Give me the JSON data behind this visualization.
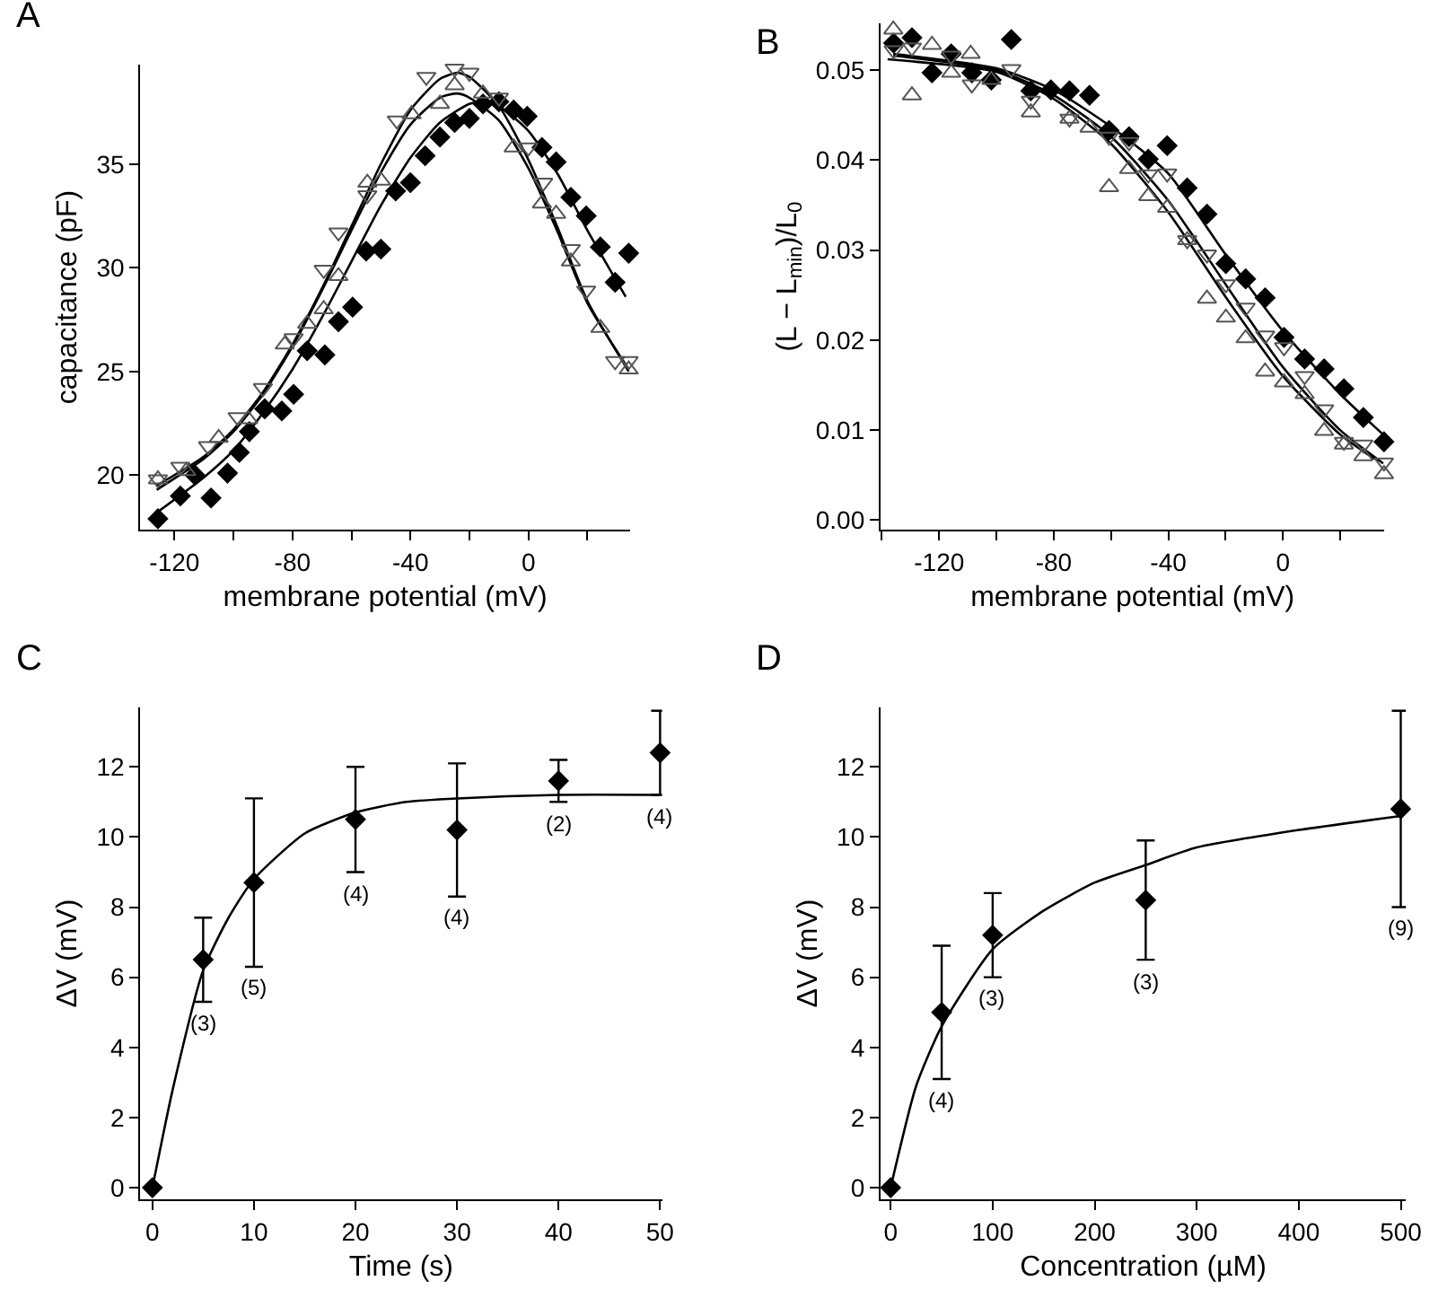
{
  "chart_data": [
    {
      "type": "scatter",
      "title": "A",
      "xlabel": "membrane potential (mV)",
      "ylabel": "capacitance (pF)",
      "xlim": [
        -131.6,
        34.5
      ],
      "ylim": [
        17.36,
        39.8
      ],
      "xticks": [
        -120,
        {
          "value": -100,
          "label": null
        },
        -80,
        {
          "value": -60,
          "label": null
        },
        -40,
        {
          "value": -20,
          "label": null
        },
        0,
        {
          "value": 20,
          "label": null
        }
      ],
      "yticks": [
        20,
        25,
        30,
        35
      ],
      "series": [
        {
          "type": "scatter",
          "marker": "diamond",
          "color": "#000000",
          "x": [
            -125.6,
            -118,
            -113,
            -107.6,
            -102,
            -98,
            -94.6,
            -89.4,
            -83.6,
            -79.6,
            -75,
            -69,
            -64.4,
            -59.6,
            -55,
            -50,
            -45,
            -40,
            -35,
            -30,
            -25,
            -20,
            -15.4,
            -10,
            -5,
            -0.4,
            4.6,
            9.4,
            14.4,
            19.6,
            24.4,
            29.4,
            34
          ],
          "values": [
            17.9,
            19.0,
            20.0,
            18.9,
            20.1,
            21.1,
            22.1,
            23.2,
            23.1,
            23.9,
            26.0,
            25.8,
            27.4,
            28.1,
            30.8,
            30.9,
            33.7,
            34.1,
            35.4,
            36.3,
            37.0,
            37.2,
            37.9,
            38.0,
            37.6,
            37.3,
            35.8,
            35.1,
            33.4,
            32.5,
            31.0,
            29.3,
            30.7
          ]
        },
        {
          "type": "scatter",
          "marker": "triangle-down-open",
          "color": "#555555",
          "x": [
            -125.6,
            -118,
            -108.6,
            -98.6,
            -90,
            -79.6,
            -69.4,
            -64.4,
            -54.6,
            -44.6,
            -34.6,
            -25,
            -20,
            -10,
            0,
            5,
            14.4,
            19.6,
            29.4,
            34
          ],
          "values": [
            19.8,
            20.4,
            21.4,
            22.8,
            24.2,
            26.6,
            29.9,
            31.7,
            33.5,
            37.1,
            39.2,
            39.6,
            39.4,
            38.2,
            35.8,
            34.1,
            30.9,
            28.9,
            25.5,
            25.5
          ]
        },
        {
          "type": "scatter",
          "marker": "triangle-up-open",
          "color": "#555555",
          "x": [
            -125.6,
            -116,
            -105,
            -95,
            -82.6,
            -75,
            -69.4,
            -64.4,
            -54.6,
            -50,
            -39.6,
            -30,
            -25,
            -15.4,
            -5,
            4.6,
            9.4,
            14.4,
            24.4,
            34
          ],
          "values": [
            19.8,
            20.2,
            21.8,
            22.7,
            26.3,
            27.3,
            28.0,
            29.6,
            34.1,
            34.2,
            37.4,
            37.9,
            38.8,
            38.4,
            35.8,
            33.1,
            32.6,
            30.3,
            27.1,
            25.1
          ]
        },
        {
          "type": "line",
          "marker": "none",
          "color": "#000000",
          "x": [
            -126,
            -110,
            -100,
            -90,
            -80,
            -70,
            -60,
            -50,
            -40,
            -30,
            -20,
            -15,
            -10,
            0,
            10,
            20,
            33
          ],
          "values": [
            18.2,
            19.9,
            21.2,
            23.0,
            25.1,
            27.6,
            30.3,
            33.0,
            35.3,
            37.0,
            37.9,
            38.0,
            37.8,
            36.6,
            34.5,
            31.8,
            28.6
          ]
        },
        {
          "type": "line",
          "marker": "none",
          "color": "#000000",
          "x": [
            -126,
            -110,
            -100,
            -90,
            -80,
            -70,
            -60,
            -50,
            -40,
            -30,
            -24,
            -20,
            -10,
            0,
            10,
            20,
            34
          ],
          "values": [
            19.5,
            20.9,
            22.2,
            24.0,
            26.3,
            29.0,
            32.0,
            35.0,
            37.6,
            39.1,
            39.4,
            39.2,
            37.8,
            35.2,
            31.9,
            28.4,
            25.0
          ]
        },
        {
          "type": "line",
          "marker": "none",
          "color": "#000000",
          "x": [
            -126,
            -110,
            -100,
            -90,
            -80,
            -70,
            -60,
            -50,
            -40,
            -30,
            -24,
            -20,
            -10,
            0,
            10,
            20,
            34
          ],
          "values": [
            19.3,
            20.8,
            22.1,
            23.9,
            26.2,
            28.9,
            31.8,
            34.6,
            36.9,
            38.2,
            38.4,
            38.2,
            37.1,
            34.8,
            31.7,
            28.3,
            25.1
          ]
        }
      ]
    },
    {
      "type": "scatter",
      "title": "B",
      "xlabel": "membrane potential (mV)",
      "ylabel": "(L − L$_{min}$)/L$_{0}$",
      "xlim": [
        -140.5,
        35.5
      ],
      "ylim": [
        -0.0011,
        0.0552
      ],
      "xticks": [
        {
          "value": -140,
          "label": null
        },
        -120,
        {
          "value": -100,
          "label": null
        },
        -80,
        {
          "value": -60,
          "label": null
        },
        -40,
        {
          "value": -20,
          "label": null
        },
        0,
        {
          "value": 20,
          "label": null
        }
      ],
      "yticks": [
        {
          "value": 0,
          "label": "0.00"
        },
        0.01,
        0.02,
        0.03,
        0.04,
        0.05
      ],
      "series": [
        {
          "type": "scatter",
          "marker": "diamond",
          "color": "#000000",
          "x": [
            -135.9,
            -129.5,
            -122.5,
            -115.8,
            -108.6,
            -101.8,
            -94.8,
            -88,
            -81,
            -74.5,
            -67.5,
            -60.7,
            -53.7,
            -47,
            -40.4,
            -33.4,
            -26.5,
            -19.9,
            -13,
            -6.2,
            0.4,
            7.6,
            14.4,
            21.3,
            28.1,
            35.3
          ],
          "values": [
            0.053,
            0.0536,
            0.0497,
            0.0518,
            0.0497,
            0.0489,
            0.0534,
            0.0477,
            0.0478,
            0.0477,
            0.0472,
            0.0433,
            0.0426,
            0.0401,
            0.0416,
            0.0369,
            0.034,
            0.0285,
            0.0268,
            0.0247,
            0.0203,
            0.0179,
            0.0168,
            0.0146,
            0.0114,
            0.0087
          ]
        },
        {
          "type": "scatter",
          "marker": "triangle-up-open",
          "color": "#555555",
          "x": [
            -136,
            -129.5,
            -122.5,
            -115.8,
            -109,
            -101.8,
            -88,
            -74.5,
            -67.5,
            -60.7,
            -53.7,
            -47,
            -40.4,
            -33.4,
            -26.5,
            -19.9,
            -13,
            -6.2,
            0.4,
            7.6,
            14.4,
            21.3,
            28.1,
            35.3
          ],
          "values": [
            0.0545,
            0.0472,
            0.0528,
            0.0497,
            0.0518,
            0.0489,
            0.0453,
            0.0446,
            0.0436,
            0.037,
            0.039,
            0.036,
            0.0347,
            0.0311,
            0.0246,
            0.0225,
            0.0202,
            0.0165,
            0.0153,
            0.014,
            0.0099,
            0.0084,
            0.0071,
            0.0051
          ]
        },
        {
          "type": "scatter",
          "marker": "triangle-down-open",
          "color": "#555555",
          "x": [
            -135.9,
            -129.5,
            -115.8,
            -108.6,
            -94.8,
            -88,
            -74.5,
            -60.7,
            -53.7,
            -47,
            -40.4,
            -33.4,
            -26.5,
            -19.9,
            -13,
            -6.2,
            0.4,
            7.6,
            14.4,
            21.3,
            28.1,
            35.3
          ],
          "values": [
            0.0522,
            0.0525,
            0.0516,
            0.0484,
            0.0501,
            0.0466,
            0.0446,
            0.0426,
            0.042,
            0.0384,
            0.0385,
            0.0311,
            0.0295,
            0.0262,
            0.0236,
            0.0205,
            0.0192,
            0.016,
            0.0123,
            0.0087,
            0.0084,
            0.0064
          ]
        },
        {
          "type": "line",
          "marker": "none",
          "color": "#000000",
          "x": [
            -136,
            -100,
            -80,
            -60,
            -40,
            -20,
            0,
            20,
            35
          ],
          "values": [
            0.0518,
            0.0502,
            0.0478,
            0.0437,
            0.0385,
            0.0295,
            0.021,
            0.014,
            0.0095
          ]
        },
        {
          "type": "line",
          "marker": "none",
          "color": "#000000",
          "x": [
            -136,
            -100,
            -80,
            -60,
            -40,
            -20,
            0,
            20,
            35
          ],
          "values": [
            0.0516,
            0.05,
            0.0472,
            0.0426,
            0.0355,
            0.0262,
            0.017,
            0.01,
            0.0063
          ]
        },
        {
          "type": "line",
          "marker": "none",
          "color": "#000000",
          "x": [
            -138,
            -100,
            -80,
            -60,
            -40,
            -20,
            0,
            20,
            32
          ],
          "values": [
            0.0512,
            0.0498,
            0.0468,
            0.0418,
            0.0342,
            0.0248,
            0.016,
            0.0095,
            0.0068
          ]
        }
      ]
    },
    {
      "type": "scatter",
      "title": "C",
      "xlabel": "Time (s)",
      "ylabel": "ΔV (mV)",
      "xlim": [
        -1.2,
        50.2
      ],
      "ylim": [
        -0.34,
        13.7
      ],
      "xticks": [
        0,
        10,
        20,
        30,
        40,
        50
      ],
      "yticks": [
        0,
        2,
        4,
        6,
        8,
        10,
        12
      ],
      "annotations": [
        {
          "text": "(3)",
          "x": 5,
          "y": 5.3
        },
        {
          "text": "(5)",
          "x": 10,
          "y": 6.3
        },
        {
          "text": "(4)",
          "x": 20,
          "y": 9.0
        },
        {
          "text": "(4)",
          "x": 30,
          "y": 8.3
        },
        {
          "text": "(2)",
          "x": 40,
          "y": 11.0
        },
        {
          "text": "(4)",
          "x": 50,
          "y": 11.2
        }
      ],
      "series": [
        {
          "type": "scatter",
          "marker": "diamond",
          "color": "#000000",
          "x": [
            0,
            5,
            10,
            20,
            30,
            40,
            50
          ],
          "values": [
            0,
            6.5,
            8.7,
            10.5,
            10.2,
            11.6,
            12.4
          ],
          "errors": [
            null,
            [
              5.3,
              7.7
            ],
            [
              6.3,
              11.1
            ],
            [
              9.0,
              12.0
            ],
            [
              8.3,
              12.1
            ],
            [
              11.0,
              12.2
            ],
            [
              11.2,
              13.6
            ]
          ]
        },
        {
          "type": "line",
          "marker": "none",
          "color": "#000000",
          "x": [
            0,
            2,
            5,
            7.5,
            10,
            15,
            20,
            25,
            30,
            40,
            50
          ],
          "values": [
            0,
            2.8,
            6.2,
            7.7,
            8.8,
            10.1,
            10.7,
            11.0,
            11.1,
            11.2,
            11.2
          ]
        }
      ]
    },
    {
      "type": "scatter",
      "title": "D",
      "xlabel": "Concentration (µM)",
      "ylabel": "ΔV (mV)",
      "xlim": [
        -10,
        505
      ],
      "ylim": [
        -0.34,
        13.7
      ],
      "xticks": [
        0,
        100,
        200,
        300,
        400,
        500
      ],
      "yticks": [
        0,
        2,
        4,
        6,
        8,
        10,
        12
      ],
      "annotations": [
        {
          "text": "(4)",
          "x": 50,
          "y": 3.1
        },
        {
          "text": "(3)",
          "x": 100,
          "y": 6.0
        },
        {
          "text": "(3)",
          "x": 250,
          "y": 6.5
        },
        {
          "text": "(9)",
          "x": 500,
          "y": 8.0
        }
      ],
      "series": [
        {
          "type": "scatter",
          "marker": "diamond",
          "color": "#000000",
          "x": [
            0,
            50,
            100,
            250,
            500
          ],
          "values": [
            0,
            5.0,
            7.2,
            8.2,
            10.8
          ],
          "errors": [
            null,
            [
              3.1,
              6.9
            ],
            [
              6.0,
              8.4
            ],
            [
              6.5,
              9.9
            ],
            [
              8.0,
              13.6
            ]
          ]
        },
        {
          "type": "line",
          "marker": "none",
          "color": "#000000",
          "x": [
            0,
            25,
            50,
            100,
            150,
            200,
            250,
            300,
            400,
            500
          ],
          "values": [
            0,
            2.9,
            4.6,
            6.8,
            7.9,
            8.7,
            9.2,
            9.7,
            10.2,
            10.6
          ]
        }
      ]
    }
  ]
}
